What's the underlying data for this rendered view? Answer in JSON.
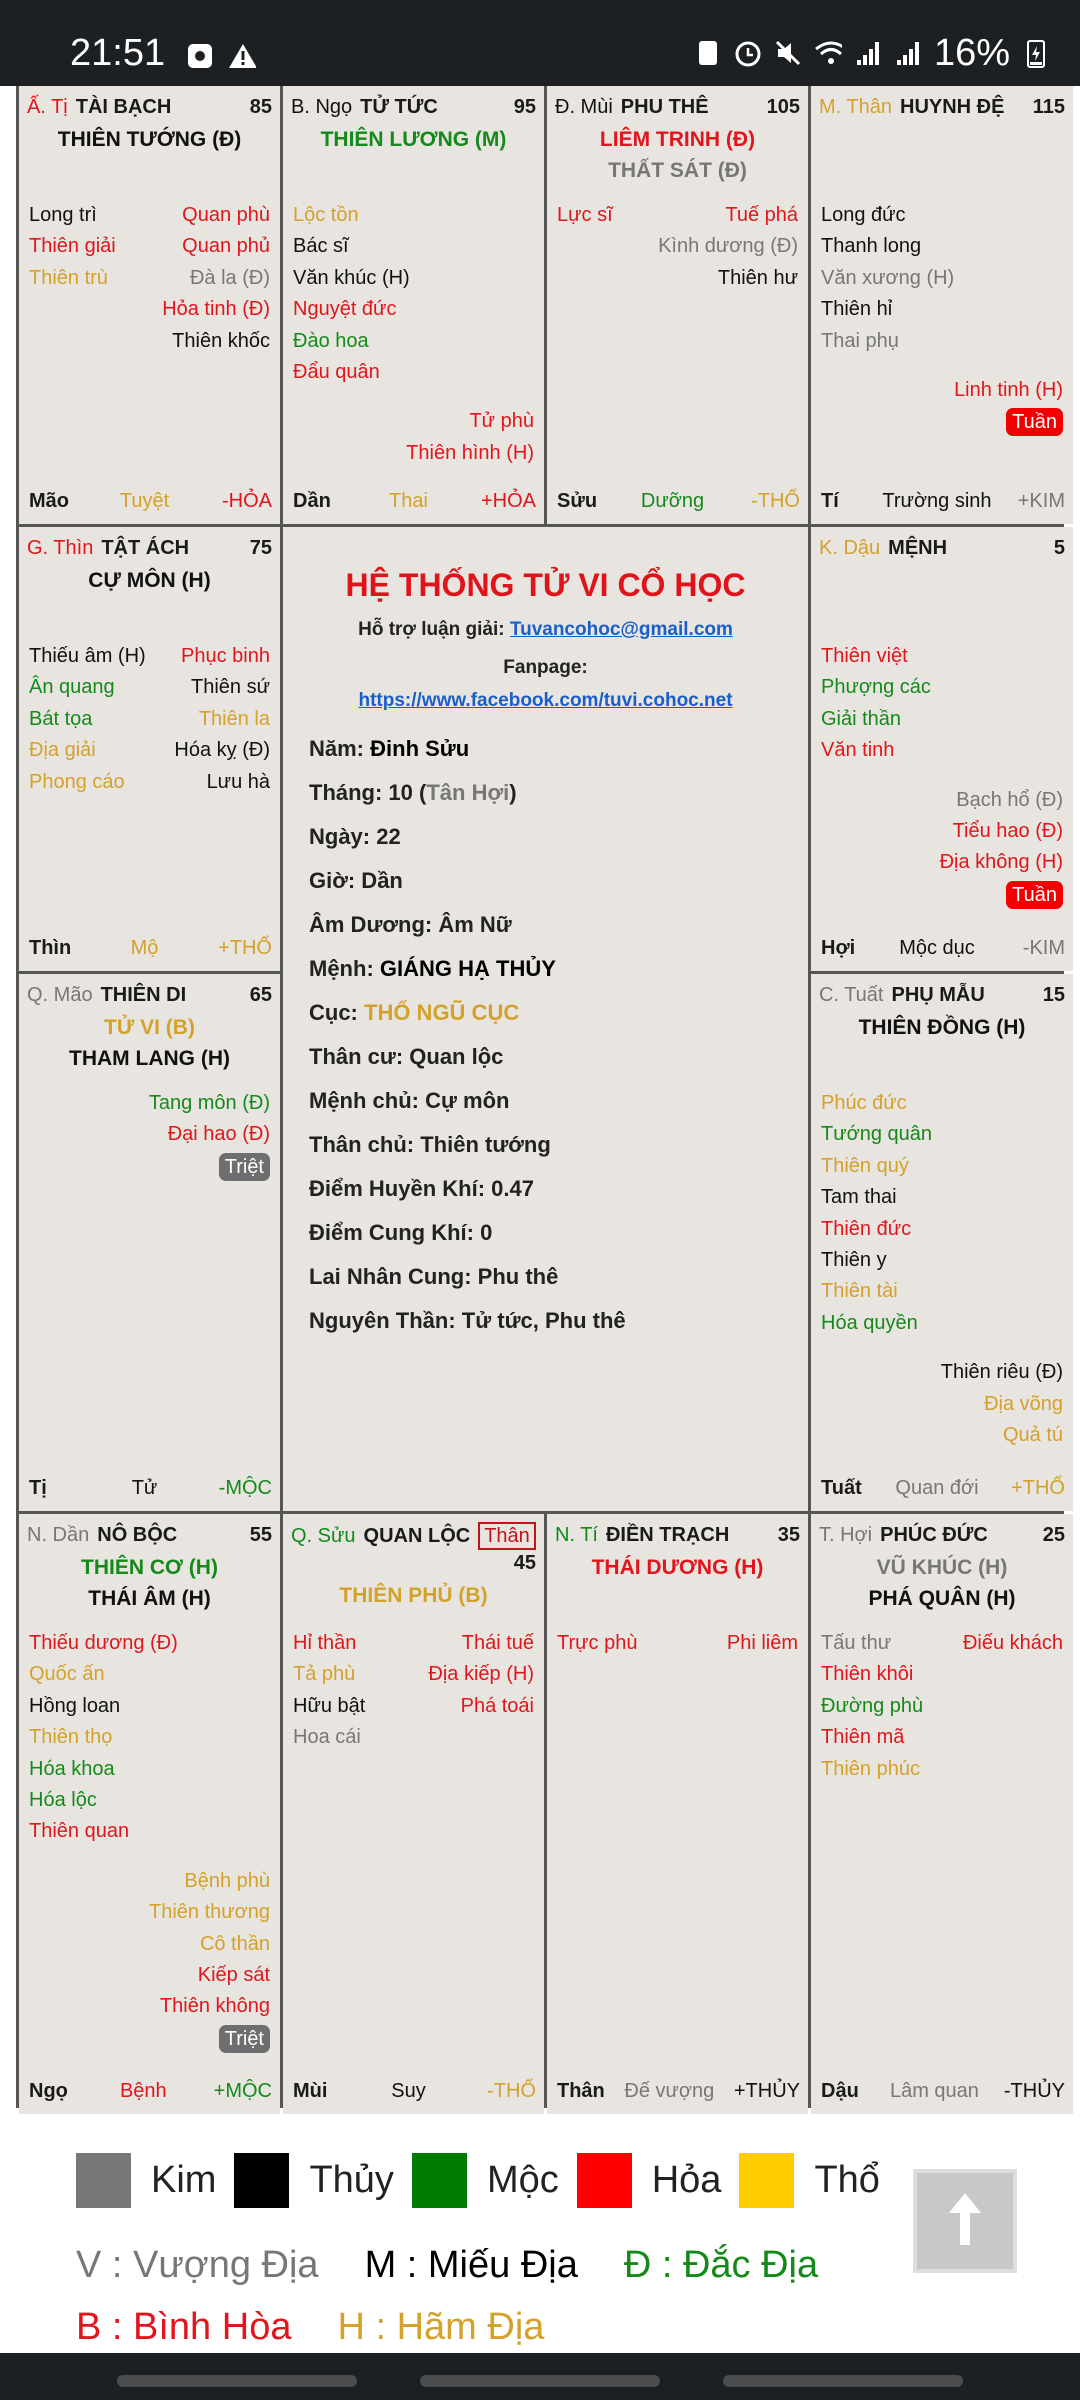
{
  "status_bar": {
    "time": "21:51",
    "battery": "16%",
    "icons_left": [
      "screen-record-icon",
      "warning-icon"
    ],
    "icons_right": [
      "recycle-icon",
      "alarm-icon",
      "mute-icon",
      "wifi-icon",
      "signal-icon",
      "signal-icon",
      "battery-charging-icon"
    ]
  },
  "palette": {
    "r": "#e0161c",
    "g": "#138a1a",
    "y": "#d4a12a",
    "k": "#111111",
    "s": "#777777"
  },
  "palaces": [
    {
      "can_chi": "Ấ. Tị",
      "cc": "r",
      "name": "TÀI BẠCH",
      "number": "85",
      "main": [
        {
          "t": "THIÊN TƯỚNG (Đ)",
          "c": "k"
        }
      ],
      "left": [
        {
          "t": "Long trì",
          "c": "k"
        },
        {
          "t": "Thiên giải",
          "c": "r"
        },
        {
          "t": "Thiên trù",
          "c": "y"
        }
      ],
      "right": [
        {
          "t": "Quan phù",
          "c": "r"
        },
        {
          "t": "Quan phủ",
          "c": "r"
        },
        {
          "t": "Đà la (Đ)",
          "c": "s"
        },
        {
          "t": "Hỏa tinh (Đ)",
          "c": "r"
        },
        {
          "t": "Thiên khốc",
          "c": "k"
        }
      ],
      "bottom": [],
      "foot": {
        "branch": "Mão",
        "stage": "Tuyệt",
        "sc": "y",
        "element": "-HỎA",
        "ec": "r"
      }
    },
    {
      "can_chi": "B. Ngọ",
      "cc": "k",
      "name": "TỬ TỨC",
      "number": "95",
      "main": [
        {
          "t": "THIÊN LƯƠNG (M)",
          "c": "g"
        }
      ],
      "left": [
        {
          "t": "Lộc tồn",
          "c": "y"
        },
        {
          "t": "Bác sĩ",
          "c": "k"
        },
        {
          "t": "Văn khúc (H)",
          "c": "k"
        },
        {
          "t": "Nguyệt đức",
          "c": "r"
        },
        {
          "t": "Đào hoa",
          "c": "g"
        },
        {
          "t": "Đẩu quân",
          "c": "r"
        }
      ],
      "right": [],
      "bottom": [
        {
          "t": "Tử phù",
          "c": "r"
        },
        {
          "t": "Thiên hình (H)",
          "c": "r"
        }
      ],
      "foot": {
        "branch": "Dần",
        "stage": "Thai",
        "sc": "y",
        "element": "+HỎA",
        "ec": "r"
      }
    },
    {
      "can_chi": "Đ. Mùi",
      "cc": "k",
      "name": "PHU THÊ",
      "number": "105",
      "main": [
        {
          "t": "LIÊM TRINH (Đ)",
          "c": "r"
        },
        {
          "t": "THẤT SÁT (Đ)",
          "c": "s"
        }
      ],
      "left": [
        {
          "t": "Lực sĩ",
          "c": "r"
        }
      ],
      "right": [
        {
          "t": "Tuế phá",
          "c": "r"
        },
        {
          "t": "Kình dương (Đ)",
          "c": "s"
        },
        {
          "t": "Thiên hư",
          "c": "k"
        }
      ],
      "bottom": [],
      "foot": {
        "branch": "Sửu",
        "stage": "Dưỡng",
        "sc": "g",
        "element": "-THỔ",
        "ec": "y"
      }
    },
    {
      "can_chi": "M. Thân",
      "cc": "y",
      "name": "HUYNH ĐỆ",
      "number": "115",
      "main": [],
      "left": [
        {
          "t": "Long đức",
          "c": "k"
        },
        {
          "t": "Thanh long",
          "c": "k"
        },
        {
          "t": "Văn xương (H)",
          "c": "s"
        },
        {
          "t": "Thiên hỉ",
          "c": "k"
        },
        {
          "t": "Thai phụ",
          "c": "s"
        }
      ],
      "right": [],
      "bottom": [
        {
          "t": "Linh tinh (H)",
          "c": "r"
        }
      ],
      "badge": {
        "t": "Tuần",
        "bg": "#f00000"
      },
      "foot": {
        "branch": "Tí",
        "stage": "Trường sinh",
        "sc": "k",
        "element": "+KIM",
        "ec": "s"
      }
    },
    {
      "can_chi": "G. Thìn",
      "cc": "r",
      "name": "TẬT ÁCH",
      "number": "75",
      "main": [
        {
          "t": "CỰ MÔN (H)",
          "c": "k"
        }
      ],
      "left": [
        {
          "t": "Thiếu âm (H)",
          "c": "k"
        },
        {
          "t": "Ân quang",
          "c": "g"
        },
        {
          "t": "Bát tọa",
          "c": "g"
        },
        {
          "t": "Địa giải",
          "c": "y"
        },
        {
          "t": "Phong cáo",
          "c": "y"
        }
      ],
      "right": [
        {
          "t": "Phục binh",
          "c": "r"
        },
        {
          "t": "Thiên sứ",
          "c": "k"
        },
        {
          "t": "Thiên la",
          "c": "y"
        },
        {
          "t": "Hóa kỵ (Đ)",
          "c": "k"
        },
        {
          "t": "Lưu hà",
          "c": "k"
        }
      ],
      "bottom": [],
      "foot": {
        "branch": "Thìn",
        "stage": "Mộ",
        "sc": "y",
        "element": "+THỔ",
        "ec": "y"
      }
    },
    {
      "can_chi": "K. Dậu",
      "cc": "y",
      "name": "MỆNH",
      "number": "5",
      "main": [],
      "left": [
        {
          "t": "Thiên việt",
          "c": "r"
        },
        {
          "t": "Phượng các",
          "c": "g"
        },
        {
          "t": "Giải thần",
          "c": "g"
        },
        {
          "t": "Văn tinh",
          "c": "r"
        }
      ],
      "right": [],
      "bottom": [
        {
          "t": "Bạch hổ (Đ)",
          "c": "s"
        },
        {
          "t": "Tiểu hao (Đ)",
          "c": "r"
        },
        {
          "t": "Địa không (H)",
          "c": "r"
        }
      ],
      "badge": {
        "t": "Tuần",
        "bg": "#f00000"
      },
      "foot": {
        "branch": "Hợi",
        "stage": "Mộc dục",
        "sc": "k",
        "element": "-KIM",
        "ec": "s"
      }
    },
    {
      "can_chi": "Q. Mão",
      "cc": "s",
      "name": "THIÊN DI",
      "number": "65",
      "main": [
        {
          "t": "TỬ VI (B)",
          "c": "y"
        },
        {
          "t": "THAM LANG (H)",
          "c": "k"
        }
      ],
      "left": [],
      "right": [],
      "bottom": [
        {
          "t": "Tang môn (Đ)",
          "c": "g"
        },
        {
          "t": "Đại hao (Đ)",
          "c": "r"
        }
      ],
      "badge": {
        "t": "Triệt",
        "bg": "#6e6e6e"
      },
      "foot": {
        "branch": "Tị",
        "stage": "Tử",
        "sc": "k",
        "element": "-MỘC",
        "ec": "g"
      }
    },
    {
      "can_chi": "C. Tuất",
      "cc": "s",
      "name": "PHỤ MẪU",
      "number": "15",
      "main": [
        {
          "t": "THIÊN ĐỒNG (H)",
          "c": "k"
        }
      ],
      "left": [
        {
          "t": "Phúc đức",
          "c": "y"
        },
        {
          "t": "Tướng quân",
          "c": "g"
        },
        {
          "t": "Thiên quý",
          "c": "y"
        },
        {
          "t": "Tam thai",
          "c": "k"
        },
        {
          "t": "Thiên đức",
          "c": "r"
        },
        {
          "t": "Thiên y",
          "c": "k"
        },
        {
          "t": "Thiên tài",
          "c": "y"
        },
        {
          "t": "Hóa quyền",
          "c": "g"
        }
      ],
      "right": [],
      "bottom": [
        {
          "t": "Thiên riêu (Đ)",
          "c": "k"
        },
        {
          "t": "Địa võng",
          "c": "y"
        },
        {
          "t": "Quả tú",
          "c": "y"
        }
      ],
      "foot": {
        "branch": "Tuất",
        "stage": "Quan đới",
        "sc": "s",
        "element": "+THỔ",
        "ec": "y"
      }
    },
    {
      "can_chi": "N. Dần",
      "cc": "s",
      "name": "NÔ BỘC",
      "number": "55",
      "main": [
        {
          "t": "THIÊN CƠ (H)",
          "c": "g"
        },
        {
          "t": "THÁI ÂM (H)",
          "c": "k"
        }
      ],
      "left": [
        {
          "t": "Thiếu dương (Đ)",
          "c": "r"
        },
        {
          "t": "Quốc ấn",
          "c": "y"
        },
        {
          "t": "Hồng loan",
          "c": "k"
        },
        {
          "t": "Thiên thọ",
          "c": "y"
        },
        {
          "t": "Hóa khoa",
          "c": "g"
        },
        {
          "t": "Hóa lộc",
          "c": "g"
        },
        {
          "t": "Thiên quan",
          "c": "r"
        }
      ],
      "right": [],
      "bottom": [
        {
          "t": "Bệnh phù",
          "c": "y"
        },
        {
          "t": "Thiên thương",
          "c": "y"
        },
        {
          "t": "Cô thần",
          "c": "y"
        },
        {
          "t": "Kiếp sát",
          "c": "r"
        },
        {
          "t": "Thiên không",
          "c": "r"
        }
      ],
      "badge": {
        "t": "Triệt",
        "bg": "#6e6e6e"
      },
      "foot": {
        "branch": "Ngọ",
        "stage": "Bệnh",
        "sc": "r",
        "element": "+MỘC",
        "ec": "g"
      }
    },
    {
      "can_chi": "Q. Sửu",
      "cc": "g",
      "name": "QUAN LỘC",
      "than": "Thân",
      "number": "45",
      "main": [
        {
          "t": "THIÊN PHỦ (B)",
          "c": "y"
        }
      ],
      "left": [
        {
          "t": "Hỉ thần",
          "c": "r"
        },
        {
          "t": "Tả phù",
          "c": "y"
        },
        {
          "t": "Hữu bật",
          "c": "k"
        },
        {
          "t": "Hoa cái",
          "c": "s"
        }
      ],
      "right": [
        {
          "t": "Thái tuế",
          "c": "r"
        },
        {
          "t": "Địa kiếp (H)",
          "c": "r"
        },
        {
          "t": "Phá toái",
          "c": "r"
        }
      ],
      "bottom": [],
      "foot": {
        "branch": "Mùi",
        "stage": "Suy",
        "sc": "k",
        "element": "-THỔ",
        "ec": "y"
      }
    },
    {
      "can_chi": "N. Tí",
      "cc": "g",
      "name": "ĐIỀN TRẠCH",
      "number": "35",
      "main": [
        {
          "t": "THÁI DƯƠNG (H)",
          "c": "r"
        }
      ],
      "left": [
        {
          "t": "Trực phù",
          "c": "r"
        }
      ],
      "right": [
        {
          "t": "Phi liêm",
          "c": "r"
        }
      ],
      "bottom": [],
      "foot": {
        "branch": "Thân",
        "stage": "Đế vượng",
        "sc": "s",
        "element": "+THỦY",
        "ec": "k"
      }
    },
    {
      "can_chi": "T. Hợi",
      "cc": "s",
      "name": "PHÚC ĐỨC",
      "number": "25",
      "main": [
        {
          "t": "VŨ KHÚC (H)",
          "c": "s"
        },
        {
          "t": "PHÁ QUÂN (H)",
          "c": "k"
        }
      ],
      "left": [
        {
          "t": "Tấu thư",
          "c": "s"
        },
        {
          "t": "Thiên khôi",
          "c": "r"
        },
        {
          "t": "Đường phù",
          "c": "g"
        },
        {
          "t": "Thiên mã",
          "c": "r"
        },
        {
          "t": "Thiên phúc",
          "c": "y"
        }
      ],
      "right": [
        {
          "t": "Điếu khách",
          "c": "r"
        }
      ],
      "bottom": [],
      "foot": {
        "branch": "Dậu",
        "stage": "Lâm quan",
        "sc": "s",
        "element": "-THỦY",
        "ec": "k"
      }
    }
  ],
  "center": {
    "title": "HỆ THỐNG TỬ VI CỔ HỌC",
    "support_label": "Hỗ trợ luận giải: ",
    "support_email": "Tuvancohoc@gmail.com",
    "fanpage_label": "Fanpage:",
    "fanpage_url": "https://www.facebook.com/tuvi.cohoc.net",
    "nam": {
      "label": "Năm: ",
      "value": "Đinh Sửu"
    },
    "thang": {
      "label": "Tháng: 10 (",
      "value": "Tân Hợi",
      "suffix": ")"
    },
    "ngay": "Ngày: 22",
    "gio": "Giờ: Dần",
    "am_duong": "Âm Dương: Âm Nữ",
    "menh": {
      "label": "Mệnh: ",
      "value": "GIÁNG HẠ THỦY"
    },
    "cuc": {
      "label": "Cục: ",
      "value": "THỔ NGŨ CỤC"
    },
    "than_cu": "Thân cư: Quan lộc",
    "menh_chu": "Mệnh chủ: Cự môn",
    "than_chu": "Thân chủ: Thiên tướng",
    "huyen_khi": "Điểm Huyền Khí: 0.47",
    "cung_khi": "Điểm Cung Khí: 0",
    "lai_nhan": "Lai Nhân Cung: Phu thê",
    "nguyen_than": "Nguyên Thần: Tử tức, Phu thê"
  },
  "legend": {
    "elements": [
      {
        "label": "Kim",
        "color": "#777777"
      },
      {
        "label": "Thủy",
        "color": "#000000"
      },
      {
        "label": "Mộc",
        "color": "#007a00"
      },
      {
        "label": "Hỏa",
        "color": "#ff0000"
      },
      {
        "label": "Thổ",
        "color": "#ffcc00"
      }
    ],
    "v": "V : Vượng Địa",
    "m": "M : Miếu Địa",
    "d": "Đ : Đắc Địa",
    "b": "B : Bình Hòa",
    "h": "H : Hãm Địa"
  }
}
